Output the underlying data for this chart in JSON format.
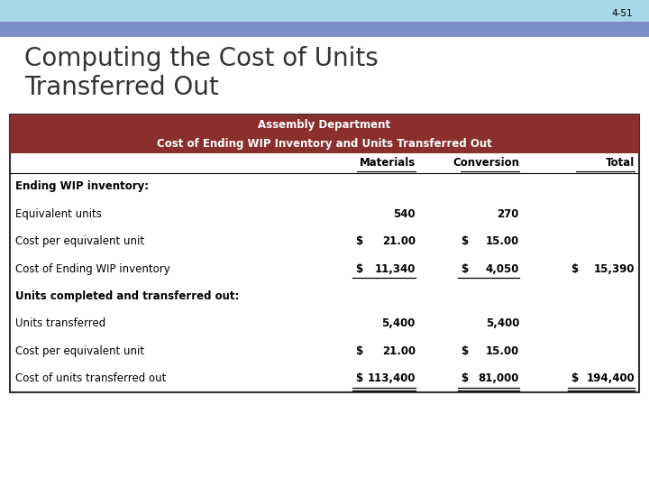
{
  "slide_number": "4-51",
  "title_line1": "Computing the Cost of Units",
  "title_line2": "Transferred Out",
  "header_bg": "#8B2E2E",
  "header_text_color": "#FFFFFF",
  "table_border_color": "#333333",
  "top_bar_color1": "#A8D8E8",
  "top_bar_color2": "#7B8FC7",
  "background_color": "#FFFFFF",
  "header1": "Assembly Department",
  "header2": "Cost of Ending WIP Inventory and Units Transferred Out",
  "rows": [
    {
      "label": "Ending WIP inventory:",
      "mat": "",
      "conv": "",
      "total": "",
      "bold_label": true
    },
    {
      "label": "Equivalent units",
      "mat": "540",
      "conv": "270",
      "total": "",
      "mat_dollar": false,
      "conv_dollar": false
    },
    {
      "label": "Cost per equivalent unit",
      "mat": "21.00",
      "conv": "15.00",
      "total": "",
      "mat_dollar": true,
      "conv_dollar": true
    },
    {
      "label": "Cost of Ending WIP inventory",
      "mat": "11,340",
      "conv": "4,050",
      "total": "15,390",
      "mat_dollar": true,
      "conv_dollar": true,
      "total_dollar": true,
      "underline_mat": true,
      "underline_conv": true,
      "underline_total": false
    },
    {
      "label": "Units completed and transferred out:",
      "mat": "",
      "conv": "",
      "total": "",
      "bold_label": true
    },
    {
      "label": "Units transferred",
      "mat": "5,400",
      "conv": "5,400",
      "total": "",
      "mat_dollar": false,
      "conv_dollar": false
    },
    {
      "label": "Cost per equivalent unit",
      "mat": "21.00",
      "conv": "15.00",
      "total": "",
      "mat_dollar": true,
      "conv_dollar": true
    },
    {
      "label": "Cost of units transferred out",
      "mat": "113,400",
      "conv": "81,000",
      "total": "194,400",
      "mat_dollar": true,
      "conv_dollar": true,
      "total_dollar": true,
      "underline_mat": true,
      "underline_conv": true,
      "underline_total": true,
      "double_underline": true
    }
  ],
  "title_fontsize": 20,
  "header_fontsize": 8.5,
  "row_fontsize": 8.5,
  "col_header_fontsize": 8.5
}
